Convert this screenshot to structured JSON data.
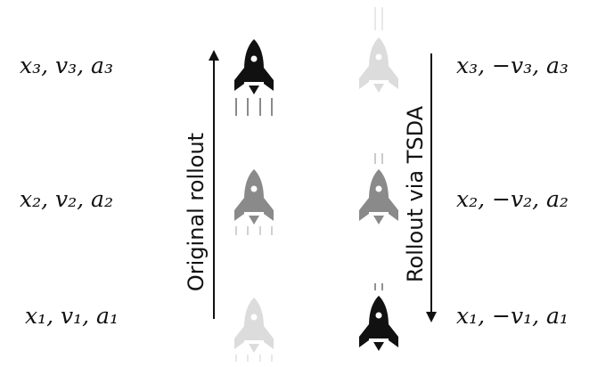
{
  "left_column": {
    "arrow_label": "Original rollout",
    "arrow_direction": "up",
    "states": [
      {
        "label": "x₃, v₃, a₃",
        "rocket_shade": "#111111"
      },
      {
        "label": "x₂, v₂, a₂",
        "rocket_shade": "#8a8a8a"
      },
      {
        "label": "x₁, v₁, a₁",
        "rocket_shade": "#dcdcdc"
      }
    ]
  },
  "right_column": {
    "arrow_label": "Rollout via TSDA",
    "arrow_direction": "down",
    "states": [
      {
        "label": "x₃, −v₃, a₃",
        "rocket_shade": "#dcdcdc"
      },
      {
        "label": "x₂, −v₂, a₂",
        "rocket_shade": "#8a8a8a"
      },
      {
        "label": "x₁, −v₁, a₁",
        "rocket_shade": "#111111"
      }
    ]
  },
  "icons": {
    "left": "rocket-icon with exhaust trails below",
    "right": "rocket-icon with motion trails above"
  }
}
